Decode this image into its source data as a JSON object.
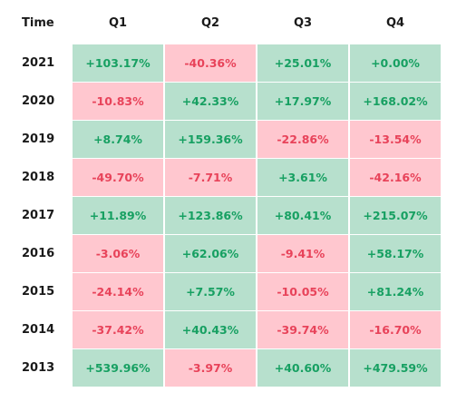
{
  "chart_data": {
    "type": "table",
    "header": {
      "time_label": "Time",
      "columns": [
        "Q1",
        "Q2",
        "Q3",
        "Q4"
      ]
    },
    "rows": [
      {
        "year": "2021",
        "values": [
          "+103.17%",
          "-40.36%",
          "+25.01%",
          "+0.00%"
        ]
      },
      {
        "year": "2020",
        "values": [
          "-10.83%",
          "+42.33%",
          "+17.97%",
          "+168.02%"
        ]
      },
      {
        "year": "2019",
        "values": [
          "+8.74%",
          "+159.36%",
          "-22.86%",
          "-13.54%"
        ]
      },
      {
        "year": "2018",
        "values": [
          "-49.70%",
          "-7.71%",
          "+3.61%",
          "-42.16%"
        ]
      },
      {
        "year": "2017",
        "values": [
          "+11.89%",
          "+123.86%",
          "+80.41%",
          "+215.07%"
        ]
      },
      {
        "year": "2016",
        "values": [
          "-3.06%",
          "+62.06%",
          "-9.41%",
          "+58.17%"
        ]
      },
      {
        "year": "2015",
        "values": [
          "-24.14%",
          "+7.57%",
          "-10.05%",
          "+81.24%"
        ]
      },
      {
        "year": "2014",
        "values": [
          "-37.42%",
          "+40.43%",
          "-39.74%",
          "-16.70%"
        ]
      },
      {
        "year": "2013",
        "values": [
          "+539.96%",
          "-3.97%",
          "+40.60%",
          "+479.59%"
        ]
      }
    ],
    "colors": {
      "positive_bg": "#b7e0cd",
      "positive_text": "#17a062",
      "negative_bg": "#ffc7cf",
      "negative_text": "#e8435a"
    }
  }
}
